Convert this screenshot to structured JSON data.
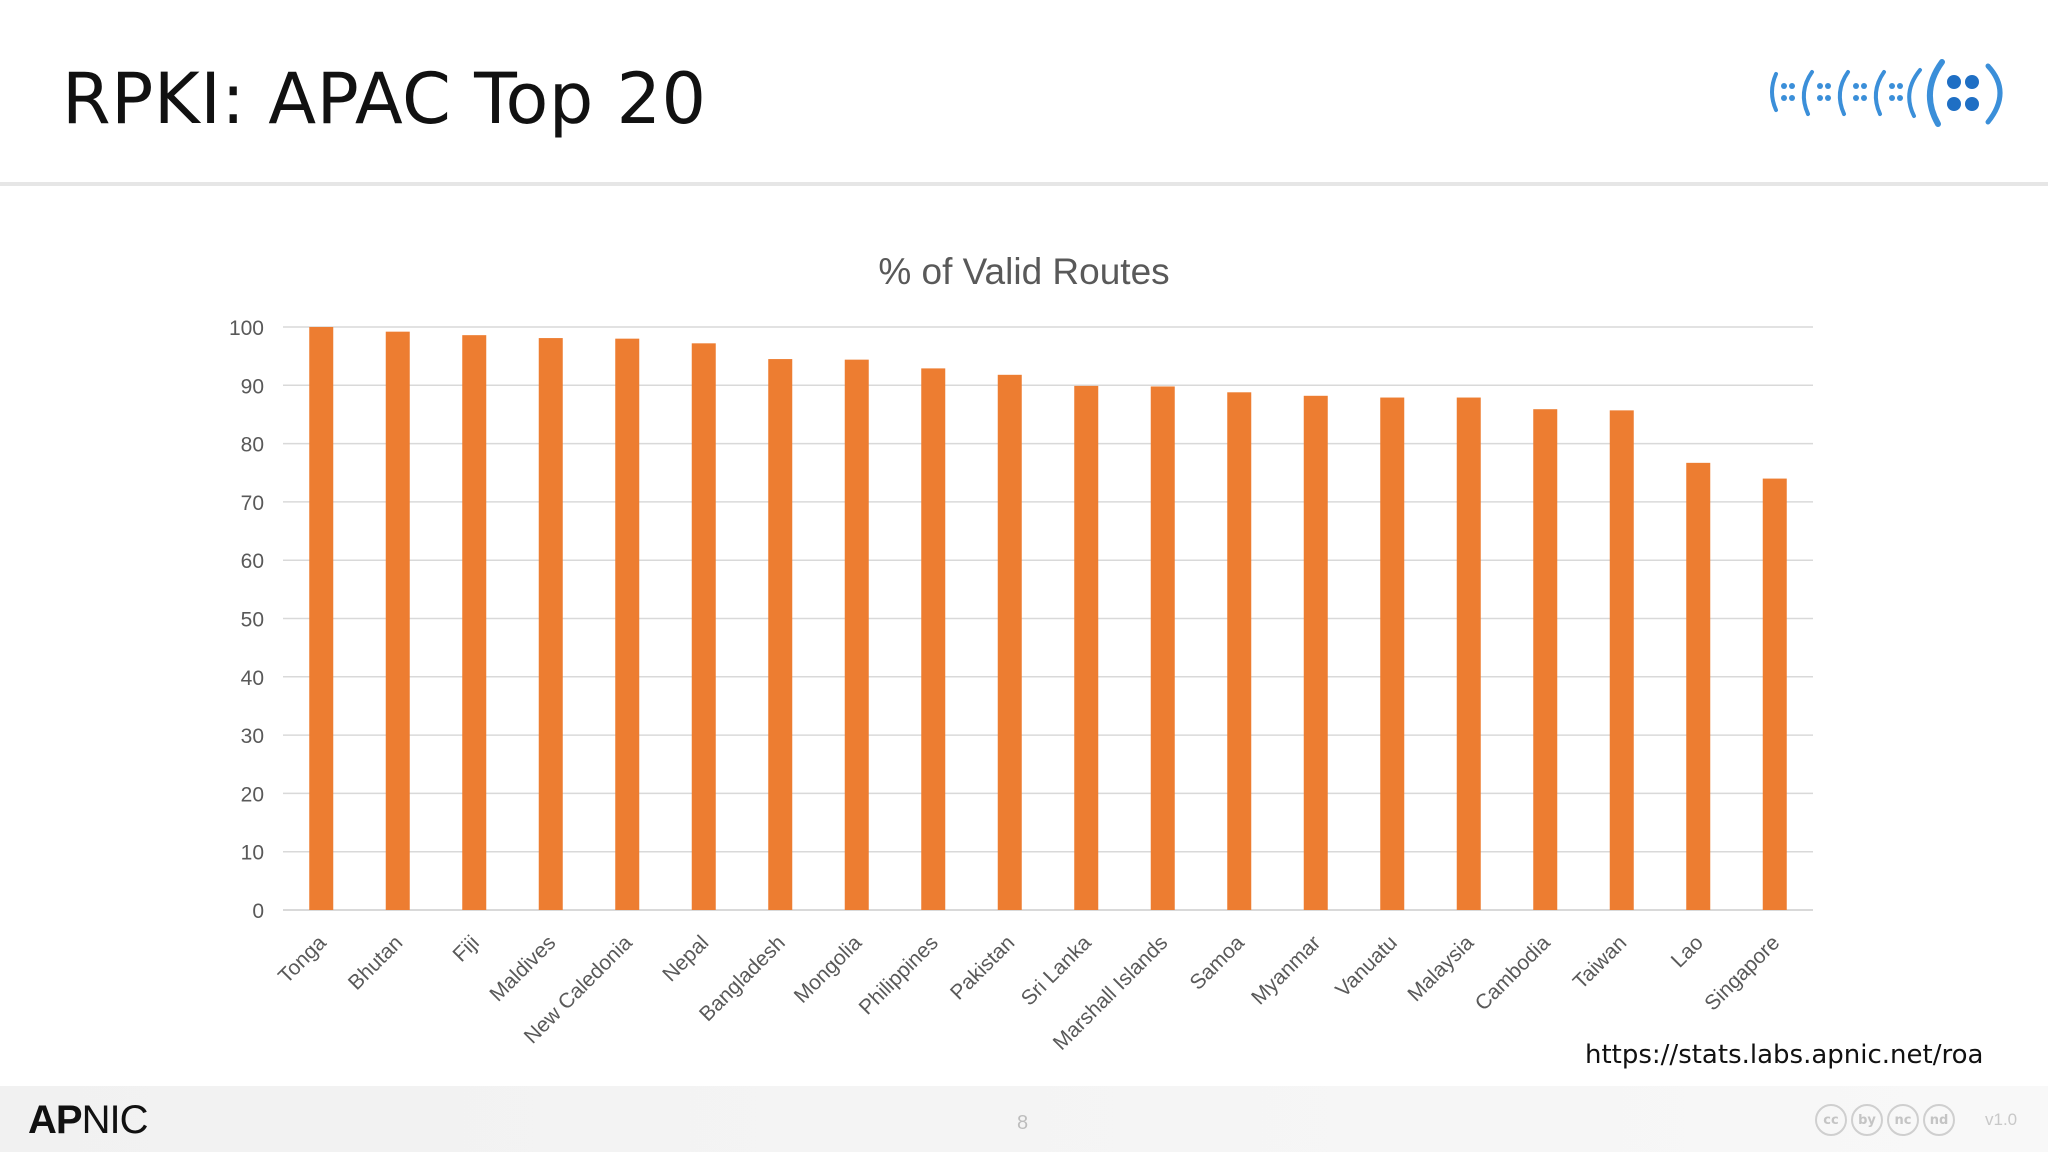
{
  "slide": {
    "title": "RPKI: APAC Top 20",
    "source_url": "https://stats.labs.apnic.net/roa",
    "page_number": "8",
    "version": "v1.0"
  },
  "brand": {
    "strong": "AP",
    "rest": "NIC"
  },
  "license_icons": [
    "cc",
    "by",
    "nc",
    "nd"
  ],
  "colors": {
    "bar": "#ED7D31",
    "grid": "#d9d9d9",
    "axis_text": "#595959",
    "title_text": "#595959"
  },
  "chart_data": {
    "type": "bar",
    "title": "% of Valid Routes",
    "xlabel": "",
    "ylabel": "",
    "ylim": [
      0,
      100
    ],
    "yticks": [
      0,
      10,
      20,
      30,
      40,
      50,
      60,
      70,
      80,
      90,
      100
    ],
    "grid": true,
    "categories": [
      "Tonga",
      "Bhutan",
      "Fiji",
      "Maldives",
      "New Caledonia",
      "Nepal",
      "Bangladesh",
      "Mongolia",
      "Philippines",
      "Pakistan",
      "Sri Lanka",
      "Marshall Islands",
      "Samoa",
      "Myanmar",
      "Vanuatu",
      "Malaysia",
      "Cambodia",
      "Taiwan",
      "Lao",
      "Singapore"
    ],
    "values": [
      100,
      99.2,
      98.6,
      98.1,
      98.0,
      97.2,
      94.5,
      94.4,
      92.9,
      91.8,
      89.9,
      89.8,
      88.8,
      88.2,
      87.9,
      87.9,
      85.9,
      85.7,
      76.7,
      74.0
    ]
  }
}
